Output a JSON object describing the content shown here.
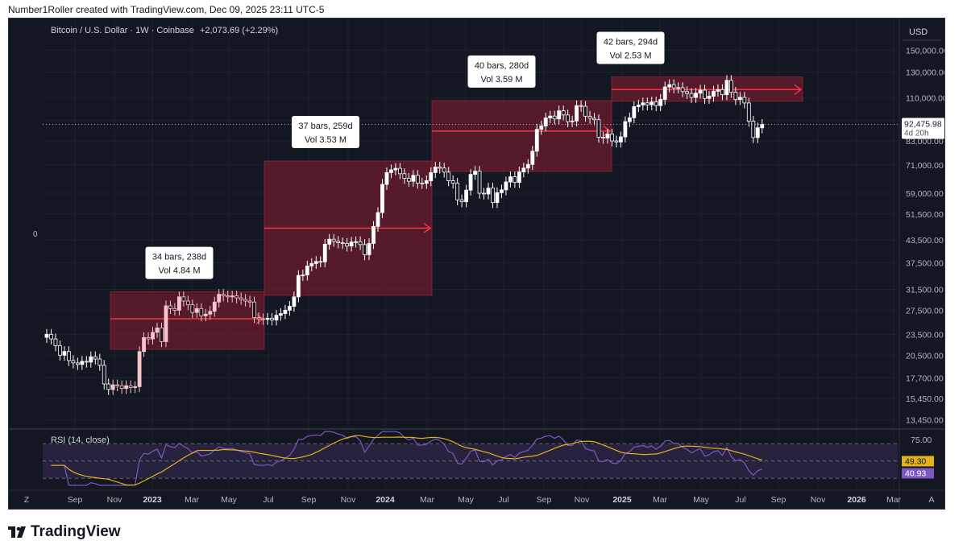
{
  "header": {
    "text": "Number1Roller created with TradingView.com, Dec 09, 2025 23:11 UTC-5"
  },
  "legend": {
    "symbol": "Bitcoin / U.S. Dollar · 1W · Coinbase",
    "change": "+2,073.69 (+2.29%)"
  },
  "currency": "USD",
  "left_scale_label": "0",
  "price_badge": {
    "price": "92,475.98",
    "countdown": "4d 20h"
  },
  "rsi": {
    "label": "RSI (14, close)",
    "levels": [
      "75.00"
    ],
    "value": "40.93",
    "ma_value": "49.30",
    "upper_band": 70,
    "lower_band": 30
  },
  "footer": {
    "brand": "TradingView"
  },
  "time_axis": [
    "Z",
    "Sep",
    "Nov",
    "2023",
    "Mar",
    "May",
    "Jul",
    "Sep",
    "Nov",
    "2024",
    "Mar",
    "May",
    "Jul",
    "Sep",
    "Nov",
    "2025",
    "Mar",
    "May",
    "Jul",
    "Sep",
    "Nov",
    "2026",
    "Mar",
    "A"
  ],
  "colors": {
    "background": "#131722",
    "up": "#ffffff",
    "down": "#ffffff",
    "highlight": "#f7c5cc",
    "zone": "#8b1e32",
    "zone_line": "#f23645",
    "rsi_line": "#7e57c2",
    "rsi_ma": "#e2b21c",
    "rsi_band": "#2a2340"
  },
  "chart_data": {
    "type": "candlestick",
    "title": "Bitcoin / U.S. Dollar · 1W · Coinbase",
    "xlabel": "",
    "ylabel": "USD",
    "scale": "log",
    "ylim": [
      12800,
      175000
    ],
    "y_ticks": [
      150000,
      130000,
      110000,
      95000,
      83000,
      71000,
      59000,
      51500,
      43500,
      37500,
      31500,
      27500,
      23500,
      20500,
      17700,
      15450,
      13450
    ],
    "x_ticks": [
      "Sep",
      "Nov",
      "2023",
      "Mar",
      "May",
      "Jul",
      "Sep",
      "Nov",
      "2024",
      "Mar",
      "May",
      "Jul",
      "Sep",
      "Nov",
      "2025",
      "Mar",
      "May",
      "Jul",
      "Sep",
      "Nov",
      "2026",
      "Mar"
    ],
    "price_path_weekly_close": [
      23500,
      22800,
      21800,
      20500,
      21000,
      19800,
      19500,
      19300,
      19700,
      19600,
      20300,
      20000,
      19200,
      17000,
      16400,
      16900,
      16800,
      16500,
      16800,
      16600,
      16700,
      21000,
      23000,
      22800,
      23800,
      24500,
      22400,
      28300,
      27800,
      27500,
      30000,
      29200,
      28500,
      27100,
      27800,
      26500,
      26800,
      27300,
      29000,
      30500,
      30200,
      30000,
      30200,
      29800,
      29500,
      29200,
      29000,
      26200,
      26000,
      25900,
      26100,
      25800,
      26600,
      26900,
      27500,
      28200,
      30000,
      34500,
      34600,
      36700,
      37300,
      37800,
      37700,
      42300,
      43700,
      43100,
      42700,
      42500,
      41800,
      42900,
      43000,
      42200,
      39500,
      42500,
      47500,
      52000,
      62500,
      67500,
      68700,
      69400,
      67000,
      65000,
      63800,
      66300,
      63000,
      62900,
      64000,
      67500,
      70000,
      69500,
      67700,
      64000,
      63000,
      56500,
      55800,
      60200,
      66700,
      68100,
      59000,
      58700,
      61000,
      55500,
      59200,
      60300,
      63500,
      65700,
      63300,
      67800,
      69500,
      71200,
      77600,
      89500,
      91500,
      96400,
      97600,
      95800,
      101000,
      98300,
      94100,
      94500,
      104500,
      104000,
      97500,
      96200,
      95300,
      85000,
      84500,
      86800,
      83000,
      82400,
      85200,
      94100,
      96500,
      103800,
      104900,
      106400,
      105000,
      107000,
      104500,
      108800,
      118000,
      119800,
      117300,
      117500,
      114500,
      113100,
      110200,
      113300,
      115600,
      109500,
      111100,
      114800,
      116000,
      112200,
      123200,
      114000,
      108700,
      110300,
      106300,
      94400,
      84800,
      90400,
      92476
    ],
    "price_path_scale": "weekly",
    "zones": [
      {
        "label_bars": "34 bars, 238d",
        "label_vol": "Vol 4.84 M",
        "from": "Dec 2022",
        "to": "Jul 2023",
        "start_price": 26000,
        "high": 31000,
        "low": 21300
      },
      {
        "label_bars": "37 bars, 259d",
        "label_vol": "Vol 3.53 M",
        "from": "Jul 2023",
        "to": "Mar 2024",
        "start_price": 47000,
        "high": 72800,
        "low": 30300
      },
      {
        "label_bars": "40 bars, 280d",
        "label_vol": "Vol 3.59 M",
        "from": "Mar 2024",
        "to": "Dec 2024",
        "start_price": 88500,
        "high": 108000,
        "low": 68000
      },
      {
        "label_bars": "42 bars, 294d",
        "label_vol": "Vol 2.53 M",
        "from": "Dec 2024",
        "to": "Oct 2025",
        "start_price": 116000,
        "high": 126000,
        "low": 107500
      }
    ]
  }
}
